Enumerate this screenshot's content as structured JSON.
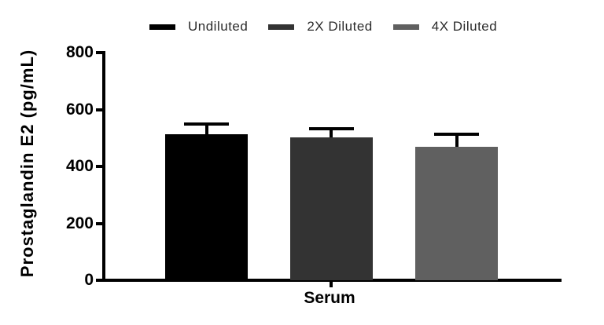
{
  "chart_data": {
    "type": "bar",
    "title": "",
    "categories": [
      "Serum"
    ],
    "series": [
      {
        "name": "Undiluted",
        "color": "#000000",
        "values": [
          512
        ],
        "errors": [
          38
        ]
      },
      {
        "name": "2X Diluted",
        "color": "#333333",
        "values": [
          503
        ],
        "errors": [
          29
        ]
      },
      {
        "name": "4X Diluted",
        "color": "#606060",
        "values": [
          470
        ],
        "errors": [
          44
        ]
      }
    ],
    "ylabel": "Prostaglandin E2 (pg/mL)",
    "xlabel": "",
    "ylim": [
      0,
      800
    ],
    "yticks": [
      0,
      200,
      400,
      600,
      800
    ],
    "legend_position": "top",
    "grid": false,
    "error_bars": "upper-only",
    "axis_color": "#000000",
    "error_bar_color": "#000000",
    "background_color": "#ffffff"
  }
}
